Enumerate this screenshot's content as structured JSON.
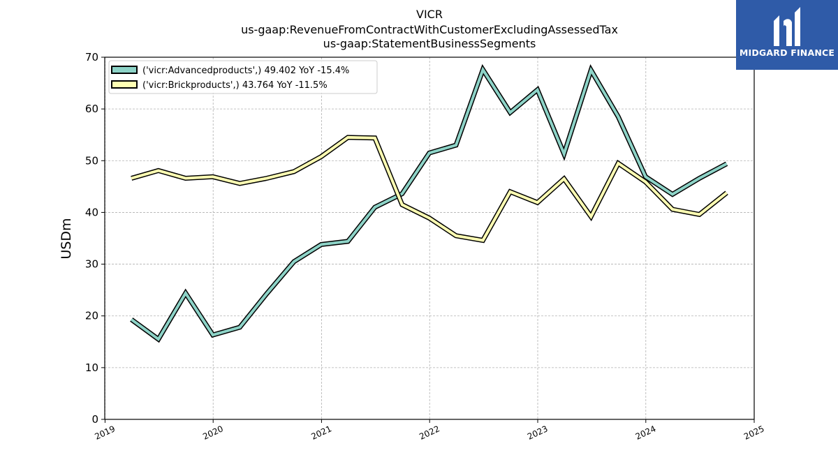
{
  "logo": {
    "text": "MIDGARD FINANCE",
    "background": "#2f5ba8"
  },
  "chart_data": {
    "type": "line",
    "title_lines": [
      "VICR",
      "us-gaap:RevenueFromContractWithCustomerExcludingAssessedTax",
      "us-gaap:StatementBusinessSegments"
    ],
    "xlabel": "",
    "ylabel": "USDm",
    "ylim": [
      0,
      70
    ],
    "yticks": [
      0,
      10,
      20,
      30,
      40,
      50,
      60,
      70
    ],
    "xlim": [
      "2018-12-31",
      "2025-01-01"
    ],
    "xticks": [
      "2019",
      "2020",
      "2021",
      "2022",
      "2023",
      "2024",
      "2025"
    ],
    "grid": true,
    "legend_position": "top-left",
    "x": [
      "2019-03-31",
      "2019-06-30",
      "2019-09-30",
      "2019-12-31",
      "2020-03-31",
      "2020-06-30",
      "2020-09-30",
      "2020-12-31",
      "2021-03-31",
      "2021-06-30",
      "2021-09-30",
      "2021-12-31",
      "2022-03-31",
      "2022-06-30",
      "2022-09-30",
      "2022-12-31",
      "2023-03-31",
      "2023-06-30",
      "2023-09-30",
      "2023-12-31",
      "2024-03-31",
      "2024-06-30",
      "2024-09-30"
    ],
    "series": [
      {
        "name": "('vicr:Advancedproducts',) 49.402 YoY -15.4%",
        "color": "#8dd3c7",
        "values": [
          19.3,
          15.5,
          24.4,
          16.3,
          17.8,
          24.3,
          30.5,
          33.8,
          34.4,
          41.0,
          43.6,
          51.5,
          53.0,
          67.6,
          59.3,
          63.7,
          51.3,
          67.5,
          58.5,
          46.9,
          43.5,
          46.6,
          49.4
        ]
      },
      {
        "name": "('vicr:Brickproducts',) 43.764 YoY -11.5%",
        "color": "#ffffb3",
        "values": [
          46.6,
          48.1,
          46.6,
          46.9,
          45.6,
          46.6,
          47.9,
          50.8,
          54.5,
          54.4,
          41.5,
          38.9,
          35.5,
          34.6,
          44.0,
          41.9,
          46.5,
          39.2,
          49.5,
          45.9,
          40.6,
          39.6,
          43.8
        ]
      }
    ]
  }
}
